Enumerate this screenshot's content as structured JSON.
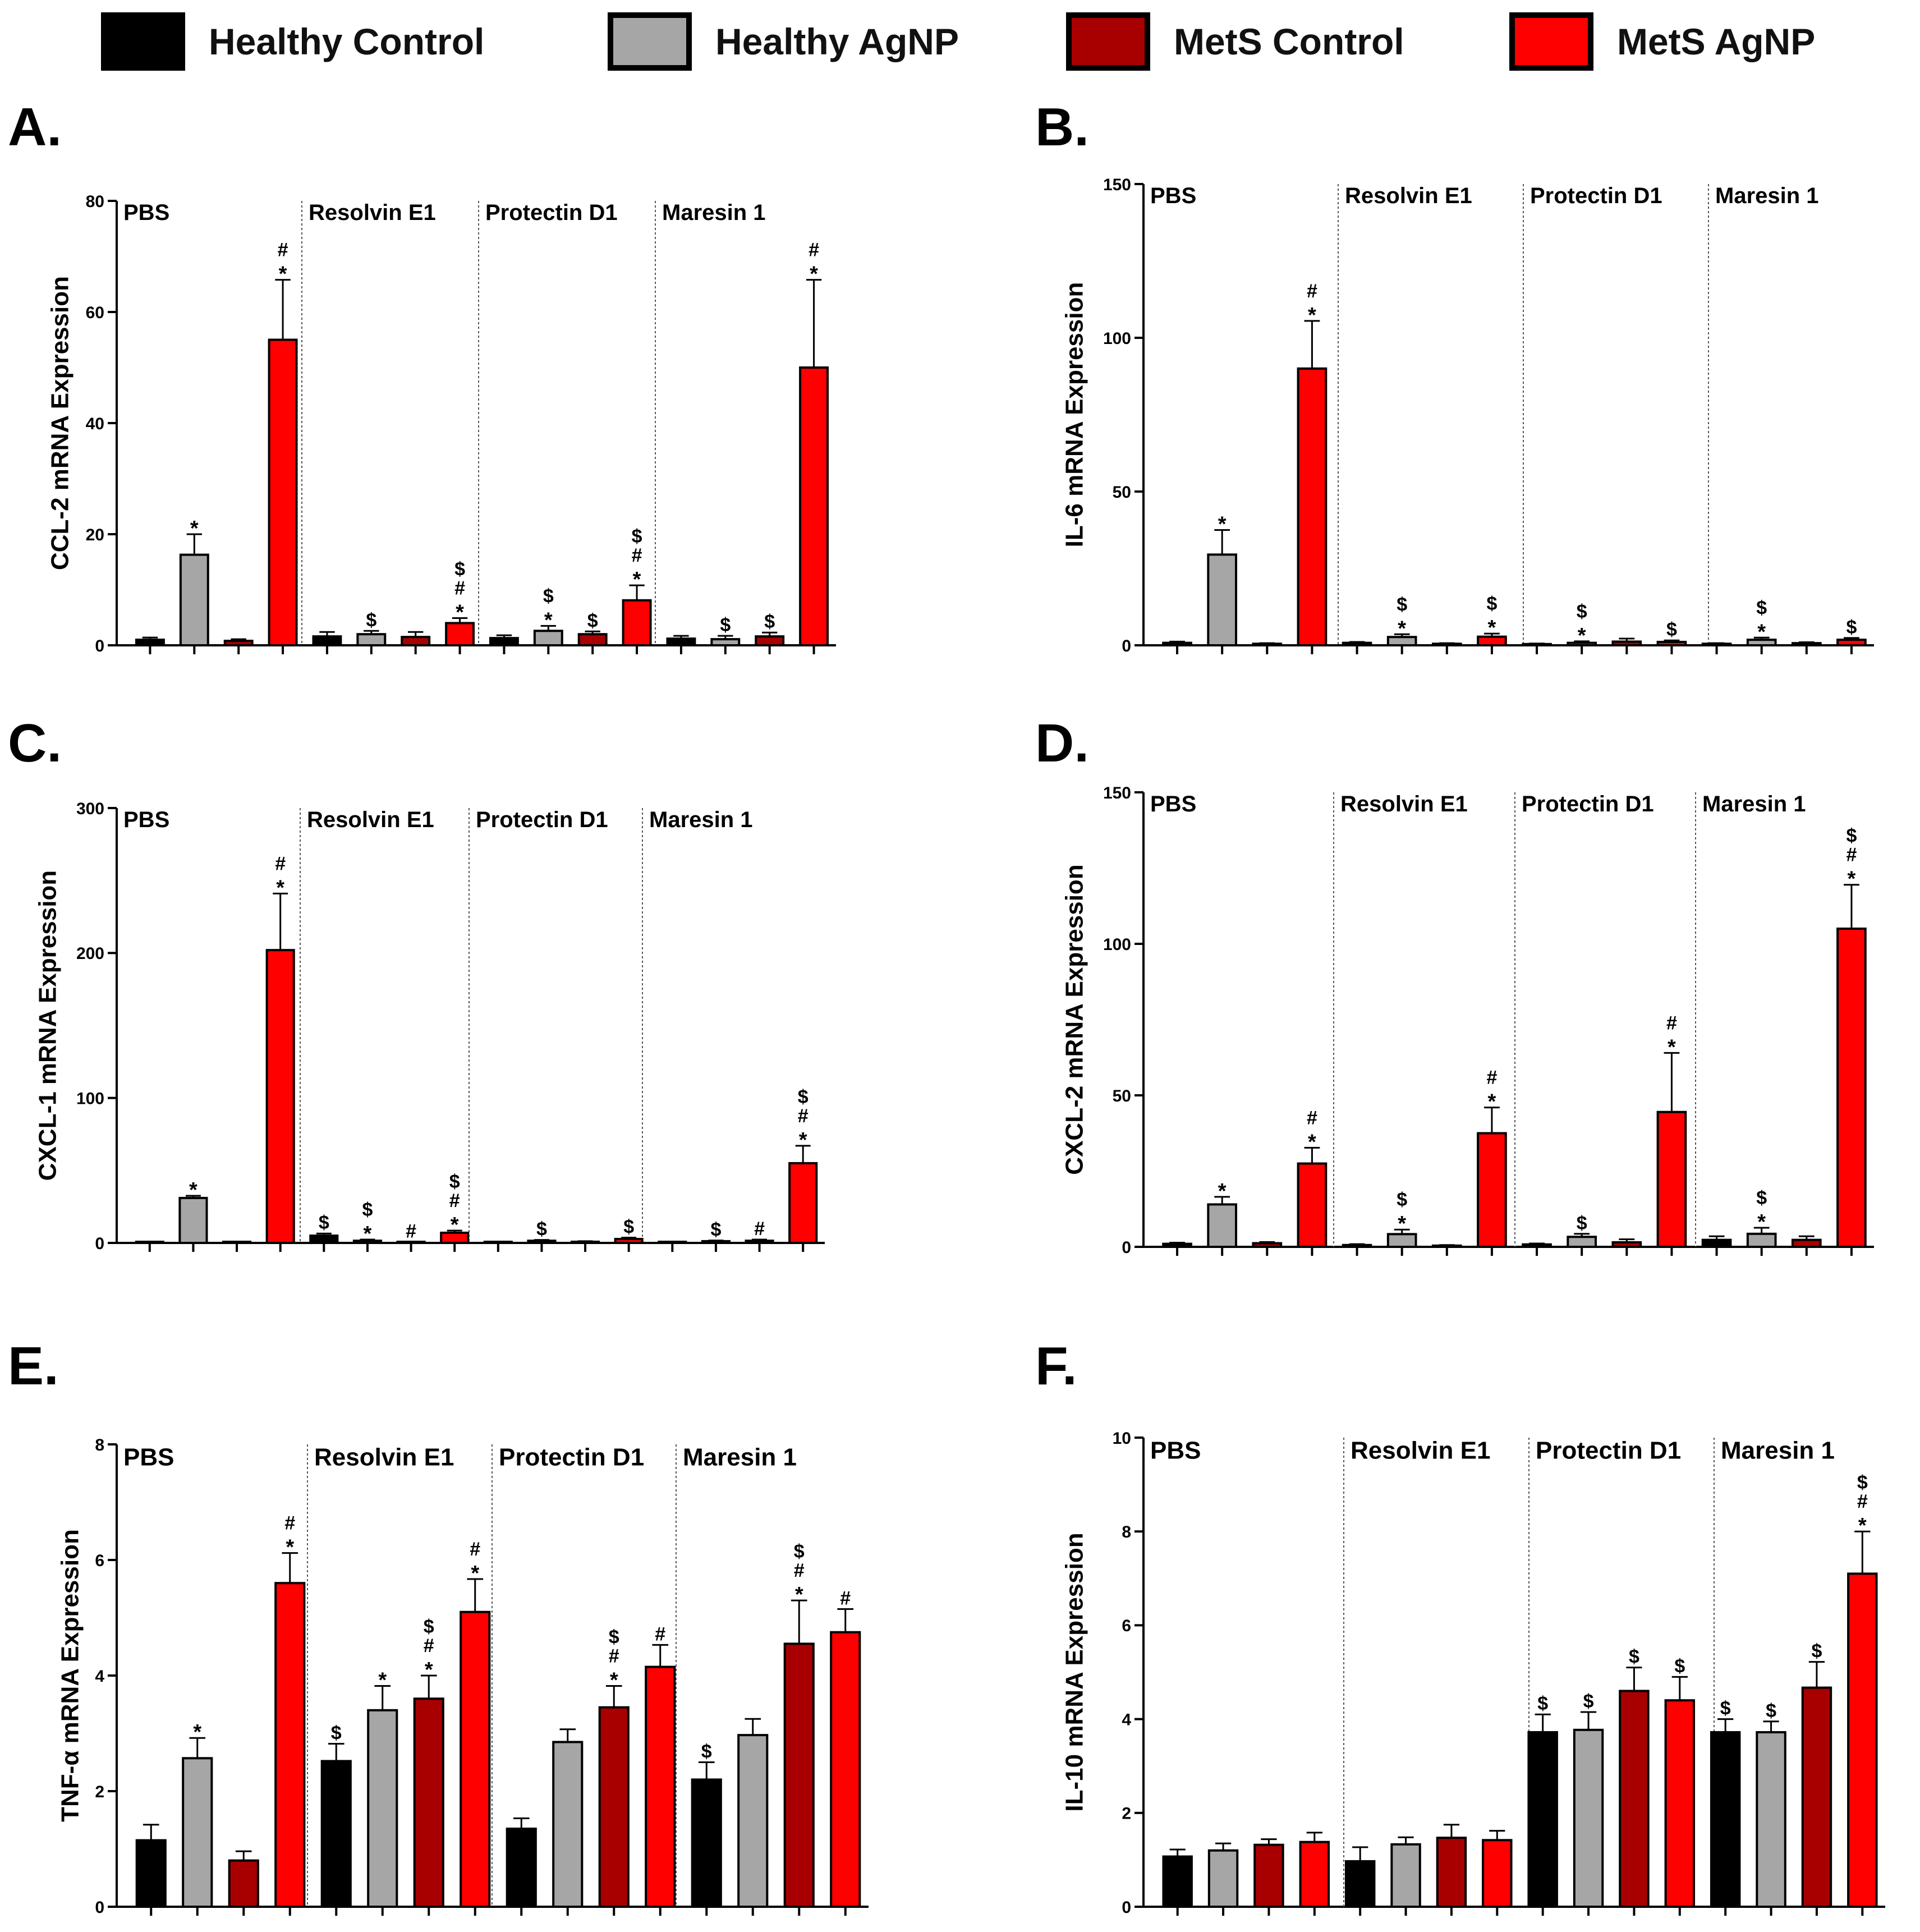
{
  "legend": [
    {
      "label": "Healthy Control",
      "color": "#000000"
    },
    {
      "label": "Healthy AgNP",
      "color": "#a6a6a6"
    },
    {
      "label": "MetS Control",
      "color": "#a80000"
    },
    {
      "label": "MetS AgNP",
      "color": "#ff0000"
    }
  ],
  "panels": [
    {
      "letter": "A."
    },
    {
      "letter": "B."
    },
    {
      "letter": "C."
    },
    {
      "letter": "D."
    },
    {
      "letter": "E."
    },
    {
      "letter": "F."
    }
  ],
  "chart_data": [
    {
      "panel": "A",
      "type": "bar",
      "title": "",
      "xlabel": "",
      "ylabel": "CCL-2 mRNA Expression",
      "ylim": [
        0,
        80
      ],
      "yticks": [
        0,
        20,
        40,
        60,
        80
      ],
      "groups": [
        "PBS",
        "Resolvin E1",
        "Protectin D1",
        "Maresin 1"
      ],
      "series_names": [
        "Healthy Control",
        "Healthy AgNP",
        "MetS Control",
        "MetS AgNP"
      ],
      "values": [
        [
          1,
          16.3,
          0.8,
          55
        ],
        [
          1.6,
          2,
          1.5,
          4
        ],
        [
          1.3,
          2.6,
          2,
          8.1
        ],
        [
          1.2,
          1.1,
          1.6,
          50
        ]
      ],
      "errors": [
        [
          0.4,
          3.7,
          0.3,
          10.8
        ],
        [
          0.8,
          0.6,
          0.9,
          0.9
        ],
        [
          0.5,
          0.9,
          0.5,
          2.7
        ],
        [
          0.5,
          0.6,
          0.7,
          15.8
        ]
      ],
      "annotations": [
        [
          "",
          "*",
          "",
          "#*"
        ],
        [
          "",
          "$",
          "",
          "$#*"
        ],
        [
          "",
          "$*",
          "$",
          "$#*"
        ],
        [
          "",
          "$",
          "$",
          "#*"
        ]
      ]
    },
    {
      "panel": "B",
      "type": "bar",
      "title": "",
      "xlabel": "",
      "ylabel": "IL-6 mRNA Expression",
      "ylim": [
        0,
        150
      ],
      "yticks": [
        0,
        50,
        100,
        150
      ],
      "groups": [
        "PBS",
        "Resolvin E1",
        "Protectin D1",
        "Maresin 1"
      ],
      "series_names": [
        "Healthy Control",
        "Healthy AgNP",
        "MetS Control",
        "MetS AgNP"
      ],
      "values": [
        [
          0.8,
          29.5,
          0.5,
          90
        ],
        [
          0.8,
          2.7,
          0.5,
          2.8
        ],
        [
          0.4,
          0.8,
          1.2,
          1.1
        ],
        [
          0.5,
          1.8,
          0.7,
          1.8
        ]
      ],
      "errors": [
        [
          0.4,
          8,
          0.2,
          15.5
        ],
        [
          0.3,
          0.9,
          0.2,
          1
        ],
        [
          0.2,
          0.5,
          1,
          0.5
        ],
        [
          0.2,
          0.7,
          0.3,
          0.6
        ]
      ],
      "annotations": [
        [
          "",
          "*",
          "",
          "#*"
        ],
        [
          "",
          "$*",
          "",
          "$*"
        ],
        [
          "",
          "$*",
          "",
          "$"
        ],
        [
          "",
          "$*",
          "",
          "$"
        ]
      ]
    },
    {
      "panel": "C",
      "type": "bar",
      "title": "",
      "xlabel": "",
      "ylabel": "CXCL-1 mRNA Expression",
      "ylim": [
        0,
        300
      ],
      "yticks": [
        0,
        100,
        200,
        300
      ],
      "groups": [
        "PBS",
        "Resolvin E1",
        "Protectin D1",
        "Maresin 1"
      ],
      "series_names": [
        "Healthy Control",
        "Healthy AgNP",
        "MetS Control",
        "MetS AgNP"
      ],
      "values": [
        [
          0.5,
          31,
          0.5,
          202
        ],
        [
          5,
          1.5,
          0.3,
          7
        ],
        [
          0.3,
          1.5,
          0.8,
          2.7
        ],
        [
          0.3,
          1.2,
          1.5,
          55
        ]
      ],
      "errors": [
        [
          0.2,
          1.5,
          0.2,
          39
        ],
        [
          1.5,
          0.8,
          0.2,
          1.5
        ],
        [
          0.2,
          0.6,
          0.4,
          1
        ],
        [
          0.2,
          0.5,
          0.8,
          12
        ]
      ],
      "annotations": [
        [
          "",
          "*",
          "",
          "#*"
        ],
        [
          "$",
          "$*",
          "#",
          "$#*"
        ],
        [
          "",
          "$",
          "",
          "$"
        ],
        [
          "",
          "$",
          "#",
          "$#*"
        ]
      ]
    },
    {
      "panel": "D",
      "type": "bar",
      "title": "",
      "xlabel": "",
      "ylabel": "CXCL-2 mRNA Expression",
      "ylim": [
        0,
        150
      ],
      "yticks": [
        0,
        50,
        100,
        150
      ],
      "groups": [
        "PBS",
        "Resolvin E1",
        "Protectin D1",
        "Maresin 1"
      ],
      "series_names": [
        "Healthy Control",
        "Healthy AgNP",
        "MetS Control",
        "MetS AgNP"
      ],
      "values": [
        [
          1,
          14,
          1.2,
          27.5
        ],
        [
          0.6,
          4.2,
          0.4,
          37.5
        ],
        [
          0.8,
          3.3,
          1.5,
          44.5
        ],
        [
          2.3,
          4.3,
          2.3,
          105
        ]
      ],
      "errors": [
        [
          0.4,
          2.5,
          0.4,
          5.2
        ],
        [
          0.3,
          1.5,
          0.2,
          8.5
        ],
        [
          0.3,
          1,
          1,
          19.5
        ],
        [
          1.2,
          2,
          1.2,
          14.5
        ]
      ],
      "annotations": [
        [
          "",
          "*",
          "",
          "#*"
        ],
        [
          "",
          "$*",
          "",
          "#*"
        ],
        [
          "",
          "$",
          "",
          "#*"
        ],
        [
          "",
          "$*",
          "",
          "$#*"
        ]
      ]
    },
    {
      "panel": "E",
      "type": "bar",
      "title": "",
      "xlabel": "",
      "ylabel": "TNF-α mRNA Expression",
      "ylim": [
        0,
        8
      ],
      "yticks": [
        0,
        2,
        4,
        6,
        8
      ],
      "groups": [
        "PBS",
        "Resolvin E1",
        "Protectin D1",
        "Maresin 1"
      ],
      "series_names": [
        "Healthy Control",
        "Healthy AgNP",
        "MetS Control",
        "MetS AgNP"
      ],
      "values": [
        [
          1.15,
          2.57,
          0.8,
          5.6
        ],
        [
          2.52,
          3.4,
          3.6,
          5.1
        ],
        [
          1.35,
          2.85,
          3.45,
          4.15
        ],
        [
          2.2,
          2.97,
          4.55,
          4.75
        ]
      ],
      "errors": [
        [
          0.27,
          0.35,
          0.16,
          0.52
        ],
        [
          0.3,
          0.42,
          0.4,
          0.57
        ],
        [
          0.18,
          0.22,
          0.37,
          0.38
        ],
        [
          0.3,
          0.28,
          0.75,
          0.4
        ]
      ],
      "annotations": [
        [
          "",
          "*",
          "",
          "#*"
        ],
        [
          "$",
          "*",
          "$#*",
          "#*"
        ],
        [
          "",
          "",
          "$#*",
          "#"
        ],
        [
          "$",
          "",
          "$#*",
          "#"
        ]
      ]
    },
    {
      "panel": "F",
      "type": "bar",
      "title": "",
      "xlabel": "",
      "ylabel": "IL-10 mRNA Expression",
      "ylim": [
        0,
        10
      ],
      "yticks": [
        0,
        2,
        4,
        6,
        8,
        10
      ],
      "groups": [
        "PBS",
        "Resolvin E1",
        "Protectin D1",
        "Maresin 1"
      ],
      "series_names": [
        "Healthy Control",
        "Healthy AgNP",
        "MetS Control",
        "MetS AgNP"
      ],
      "values": [
        [
          1.07,
          1.2,
          1.32,
          1.38
        ],
        [
          0.97,
          1.33,
          1.47,
          1.42
        ],
        [
          3.72,
          3.77,
          4.6,
          4.4
        ],
        [
          3.72,
          3.72,
          4.67,
          7.1
        ]
      ],
      "errors": [
        [
          0.15,
          0.15,
          0.12,
          0.2
        ],
        [
          0.3,
          0.15,
          0.28,
          0.2
        ],
        [
          0.38,
          0.38,
          0.5,
          0.5
        ],
        [
          0.28,
          0.23,
          0.55,
          0.9
        ]
      ],
      "annotations": [
        [
          "",
          "",
          "",
          ""
        ],
        [
          "",
          "",
          "",
          ""
        ],
        [
          "$",
          "$",
          "$",
          "$"
        ],
        [
          "$",
          "$",
          "$",
          "$#*"
        ]
      ]
    }
  ]
}
